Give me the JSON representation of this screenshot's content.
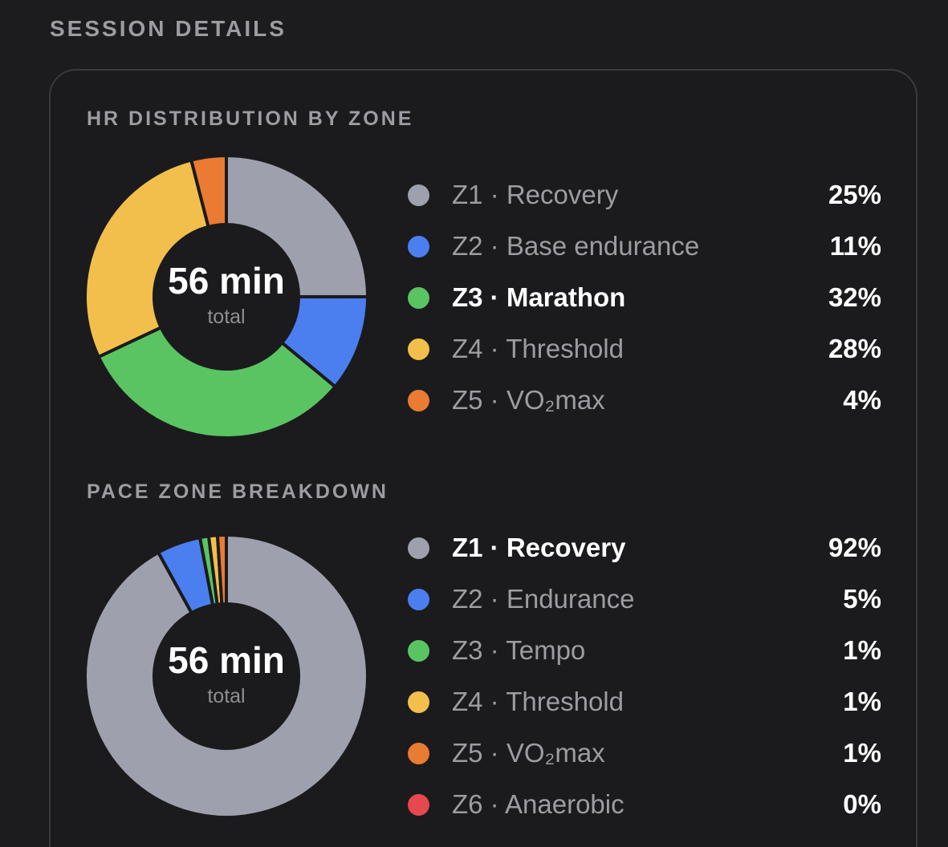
{
  "header": {
    "title": "SESSION DETAILS"
  },
  "colors": {
    "z1": "#9ea1ad",
    "z2": "#4b7ff0",
    "z3": "#5ac463",
    "z4": "#f2bf4c",
    "z5": "#eb7a33",
    "z6": "#e5484d"
  },
  "chart_data": [
    {
      "type": "pie",
      "title": "HR DISTRIBUTION BY ZONE",
      "center_value": "56 min",
      "center_label": "total",
      "categories": [
        "Z1 · Recovery",
        "Z2 · Base endurance",
        "Z3 · Marathon",
        "Z4 · Threshold",
        "Z5 · VO₂max"
      ],
      "values": [
        25,
        11,
        32,
        28,
        4
      ],
      "labels": [
        "25%",
        "11%",
        "32%",
        "28%",
        "4%"
      ],
      "colors": [
        "#9ea1ad",
        "#4b7ff0",
        "#5ac463",
        "#f2bf4c",
        "#eb7a33"
      ],
      "highlighted": "Z3 · Marathon"
    },
    {
      "type": "pie",
      "title": "PACE ZONE BREAKDOWN",
      "center_value": "56 min",
      "center_label": "total",
      "categories": [
        "Z1 · Recovery",
        "Z2 · Endurance",
        "Z3 · Tempo",
        "Z4 · Threshold",
        "Z5 · VO₂max",
        "Z6 · Anaerobic"
      ],
      "values": [
        92,
        5,
        1,
        1,
        1,
        0
      ],
      "labels": [
        "92%",
        "5%",
        "1%",
        "1%",
        "1%",
        "0%"
      ],
      "colors": [
        "#9ea1ad",
        "#4b7ff0",
        "#5ac463",
        "#f2bf4c",
        "#eb7a33",
        "#e5484d"
      ],
      "highlighted": "Z1 · Recovery"
    }
  ]
}
